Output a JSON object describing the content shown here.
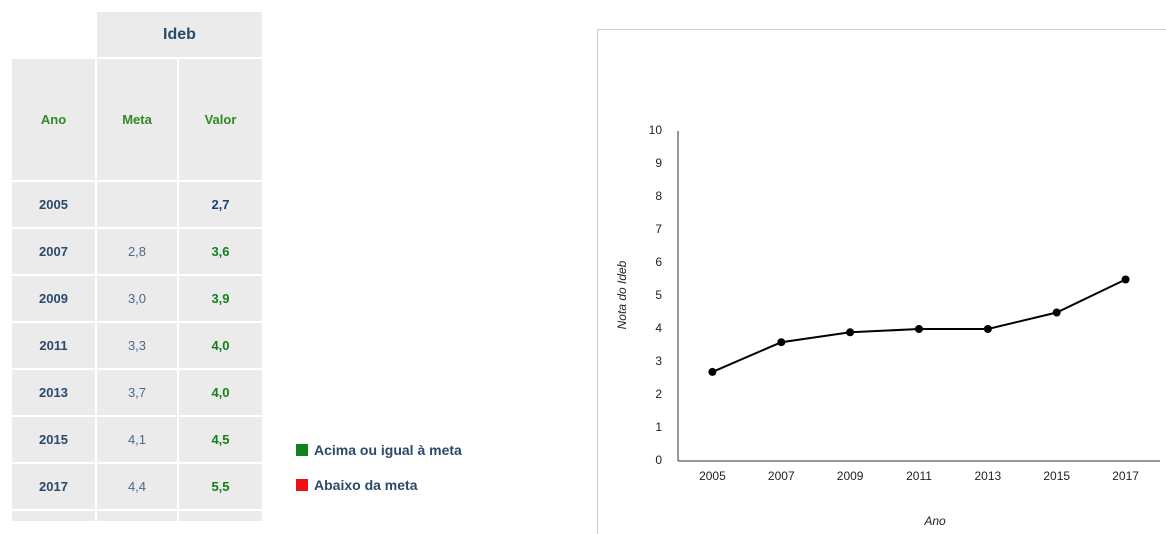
{
  "table": {
    "group_header": "Ideb",
    "columns": [
      "Ano",
      "Meta",
      "Valor"
    ],
    "rows": [
      [
        "2005",
        null,
        "2,7"
      ],
      [
        "2007",
        "2,8",
        "3,6"
      ],
      [
        "2009",
        "3,0",
        "3,9"
      ],
      [
        "2011",
        "3,3",
        "4,0"
      ],
      [
        "2013",
        "3,7",
        "4,0"
      ],
      [
        "2015",
        "4,1",
        "4,5"
      ],
      [
        "2017",
        "4,4",
        "5,5"
      ]
    ]
  },
  "legend": [
    {
      "label": "Acima ou igual à meta",
      "color": "#12801d"
    },
    {
      "label": "Abaixo da meta",
      "color": "#ee1111"
    }
  ],
  "chart_data": {
    "type": "line",
    "xlabel": "Ano",
    "ylabel": "Nota do Ideb",
    "categories": [
      "2005",
      "2007",
      "2009",
      "2011",
      "2013",
      "2015",
      "2017"
    ],
    "values": [
      2.7,
      3.6,
      3.9,
      4.0,
      4.0,
      4.5,
      5.5
    ],
    "color": "#000000",
    "ylim": [
      0,
      10
    ],
    "yticks": [
      0,
      1,
      2,
      3,
      4,
      5,
      6,
      7,
      8,
      9,
      10
    ]
  }
}
